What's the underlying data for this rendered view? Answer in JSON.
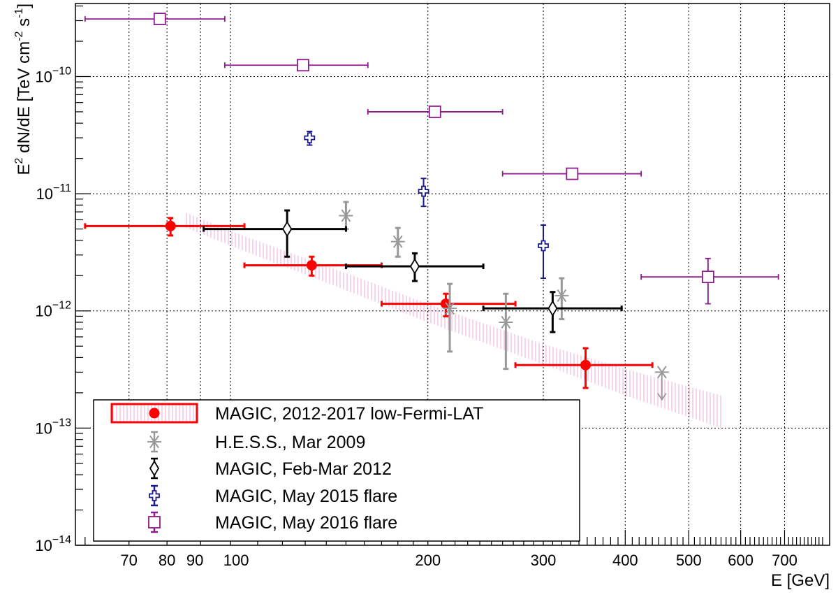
{
  "chart_data": {
    "type": "scatter",
    "xlabel": "E [GeV]",
    "ylabel": "E^2 dN/dE [TeV cm^-2 s^-1]",
    "x_scale": "log",
    "y_scale": "log",
    "xlim": [
      58,
      820
    ],
    "ylim": [
      1e-14,
      4.2e-10
    ],
    "grid": true,
    "legend_position": "bottom-left",
    "x_tick_labels": [
      "70",
      "80",
      "90",
      "100",
      "200",
      "300",
      "400",
      "500",
      "600",
      "700"
    ],
    "x_tick_values": [
      70,
      80,
      90,
      100,
      200,
      300,
      400,
      500,
      600,
      700
    ],
    "y_tick_labels": [
      {
        "mant": "10",
        "exp": "−14",
        "value": 1e-14
      },
      {
        "mant": "10",
        "exp": "−13",
        "value": 1e-13
      },
      {
        "mant": "10",
        "exp": "−12",
        "value": 1e-12
      },
      {
        "mant": "10",
        "exp": "−11",
        "value": 1e-11
      },
      {
        "mant": "10",
        "exp": "−10",
        "value": 1e-10
      }
    ],
    "band": {
      "series": "MAGIC, 2012-2017 low-Fermi-LAT",
      "color": "#f2b6e0",
      "x": [
        85,
        100,
        150,
        200,
        300,
        400,
        560
      ],
      "low": [
        5.2e-12,
        3.6e-12,
        1.5e-12,
        8e-13,
        3.5e-13,
        1.9e-13,
        1e-13
      ],
      "high": [
        7e-12,
        4.8e-12,
        2.1e-12,
        1.15e-12,
        5.2e-13,
        3.2e-13,
        1.9e-13
      ]
    },
    "series": [
      {
        "name": "MAGIC, 2012-2017 low-Fermi-LAT",
        "color": "#ff0000",
        "marker": "filled-circle",
        "points": [
          {
            "x": 81,
            "y": 5.3e-12,
            "xlo": 60,
            "xhi": 105,
            "ylo": 4.4e-12,
            "yhi": 6.2e-12
          },
          {
            "x": 133,
            "y": 2.45e-12,
            "xlo": 105,
            "xhi": 170,
            "ylo": 2e-12,
            "yhi": 2.9e-12
          },
          {
            "x": 213,
            "y": 1.15e-12,
            "xlo": 170,
            "xhi": 272,
            "ylo": 9e-13,
            "yhi": 1.4e-12
          },
          {
            "x": 348,
            "y": 3.45e-13,
            "xlo": 272,
            "xhi": 440,
            "ylo": 2.2e-13,
            "yhi": 4.8e-13
          }
        ]
      },
      {
        "name": "H.E.S.S., Mar 2009",
        "color": "#999999",
        "marker": "star",
        "points": [
          {
            "x": 150,
            "y": 6.5e-12,
            "ylo": 5e-12,
            "yhi": 8.5e-12
          },
          {
            "x": 180,
            "y": 3.9e-12,
            "ylo": 2.9e-12,
            "yhi": 5.1e-12
          },
          {
            "x": 216,
            "y": 1.05e-12,
            "ylo": 4.5e-13,
            "yhi": 1.7e-12
          },
          {
            "x": 263,
            "y": 8e-13,
            "ylo": 3.2e-13,
            "yhi": 1.4e-12
          },
          {
            "x": 320,
            "y": 1.35e-12,
            "ylo": 8.5e-13,
            "yhi": 1.9e-12
          },
          {
            "x": 455,
            "y": 3e-13,
            "upper_limit": true,
            "ylo": 1.75e-13
          }
        ]
      },
      {
        "name": "MAGIC, Feb-Mar 2012",
        "color": "#000000",
        "marker": "open-diamond",
        "points": [
          {
            "x": 122,
            "y": 5e-12,
            "xlo": 91,
            "xhi": 150,
            "ylo": 2.9e-12,
            "yhi": 7.2e-12
          },
          {
            "x": 191,
            "y": 2.4e-12,
            "xlo": 150,
            "xhi": 243,
            "ylo": 1.8e-12,
            "yhi": 3.1e-12
          },
          {
            "x": 310,
            "y": 1.05e-12,
            "xlo": 243,
            "xhi": 395,
            "ylo": 6.6e-13,
            "yhi": 1.45e-12
          }
        ]
      },
      {
        "name": "MAGIC, May 2015 flare",
        "color": "#1a1a8c",
        "marker": "open-cross",
        "points": [
          {
            "x": 132,
            "y": 3e-11,
            "ylo": 2.6e-11,
            "yhi": 3.4e-11
          },
          {
            "x": 197,
            "y": 1.05e-11,
            "ylo": 7.8e-12,
            "yhi": 1.35e-11
          },
          {
            "x": 300,
            "y": 3.6e-12,
            "ylo": 1.9e-12,
            "yhi": 5.4e-12
          }
        ]
      },
      {
        "name": "MAGIC, May 2016 flare",
        "color": "#8e1a8e",
        "marker": "open-square",
        "points": [
          {
            "x": 78,
            "y": 3.1e-10,
            "xlo": 60,
            "xhi": 98,
            "ylo": 2.9e-10,
            "yhi": 3.3e-10
          },
          {
            "x": 129,
            "y": 1.25e-10,
            "xlo": 98,
            "xhi": 162,
            "ylo": 1.17e-10,
            "yhi": 1.33e-10
          },
          {
            "x": 205,
            "y": 5e-11,
            "xlo": 162,
            "xhi": 260,
            "ylo": 4.7e-11,
            "yhi": 5.3e-11
          },
          {
            "x": 332,
            "y": 1.48e-11,
            "xlo": 260,
            "xhi": 423,
            "ylo": 1.36e-11,
            "yhi": 1.6e-11
          },
          {
            "x": 535,
            "y": 1.95e-12,
            "xlo": 423,
            "xhi": 685,
            "ylo": 1.15e-12,
            "yhi": 2.8e-12
          }
        ]
      }
    ],
    "legend": [
      "MAGIC, 2012-2017 low-Fermi-LAT",
      "H.E.S.S., Mar 2009",
      "MAGIC, Feb-Mar 2012",
      "MAGIC, May 2015 flare",
      "MAGIC, May 2016 flare"
    ]
  }
}
